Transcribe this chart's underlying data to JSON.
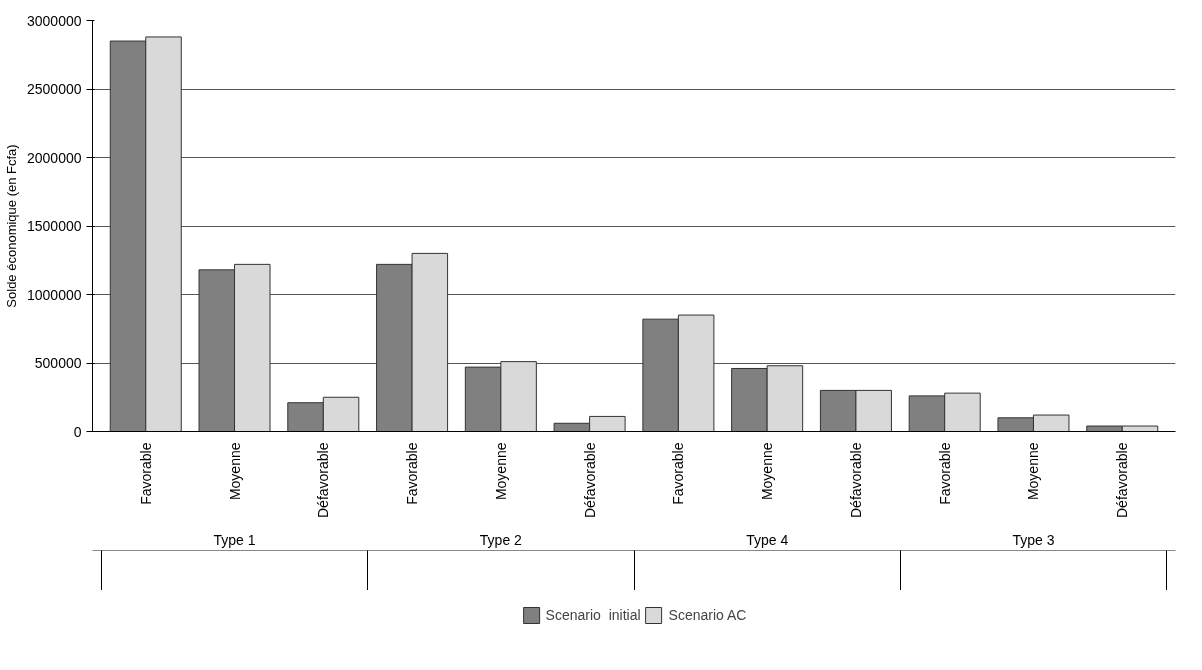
{
  "chart_data": {
    "type": "bar",
    "ylabel": "Solde économique (en Fcfa)",
    "categories": [
      "Favorable",
      "Moyenne",
      "Défavorable",
      "Favorable",
      "Moyenne",
      "Défavorable",
      "Favorable",
      "Moyenne",
      "Défavorable",
      "Favorable",
      "Moyenne",
      "Défavorable"
    ],
    "annotations": [
      "Type 1",
      "Type 2",
      "Type 4",
      "Type 3"
    ],
    "series": [
      {
        "name": "Scenario  initial",
        "color": "#808080",
        "values": [
          2850000,
          1180000,
          210000,
          1220000,
          470000,
          60000,
          820000,
          460000,
          300000,
          260000,
          100000,
          40000
        ]
      },
      {
        "name": "Scenario AC",
        "color": "#d9d9d9",
        "values": [
          2880000,
          1220000,
          250000,
          1300000,
          510000,
          110000,
          850000,
          480000,
          300000,
          280000,
          120000,
          40000
        ]
      }
    ],
    "ylim": [
      0,
      3000000
    ],
    "yticks": [
      0,
      500000,
      1000000,
      1500000,
      2000000,
      2500000,
      3000000
    ],
    "grid": "y",
    "legend": "bottom"
  }
}
